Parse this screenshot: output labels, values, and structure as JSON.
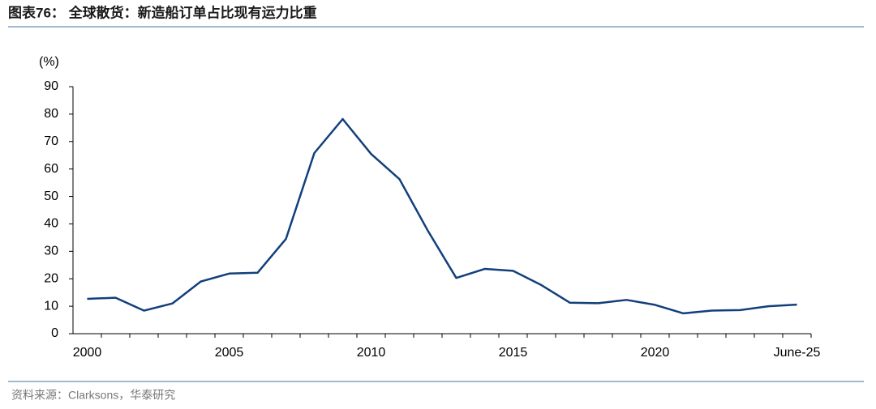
{
  "chart_data": {
    "type": "line",
    "title": "图表76： 全球散货：新造船订单占比现有运力比重",
    "y_label": "(%)",
    "source": "资料来源：Clarksons，华泰研究",
    "categories": [
      "2000",
      null,
      null,
      null,
      null,
      "2005",
      null,
      null,
      null,
      null,
      "2010",
      null,
      null,
      null,
      null,
      "2015",
      null,
      null,
      null,
      null,
      "2020",
      null,
      null,
      null,
      null,
      "June-25"
    ],
    "values": [
      12.7,
      13.1,
      8.4,
      11,
      19,
      21.9,
      22.2,
      34.5,
      65.8,
      78.2,
      65.5,
      56.3,
      37.5,
      20.3,
      23.6,
      22.9,
      17.7,
      11.3,
      11.1,
      12.3,
      10.5,
      7.4,
      8.4,
      8.6,
      10,
      10.6
    ],
    "color": "#123f7c",
    "ylim": [
      0,
      90
    ],
    "yticks": [
      0,
      10,
      20,
      30,
      40,
      50,
      60,
      70,
      80,
      90
    ],
    "grid": false
  }
}
